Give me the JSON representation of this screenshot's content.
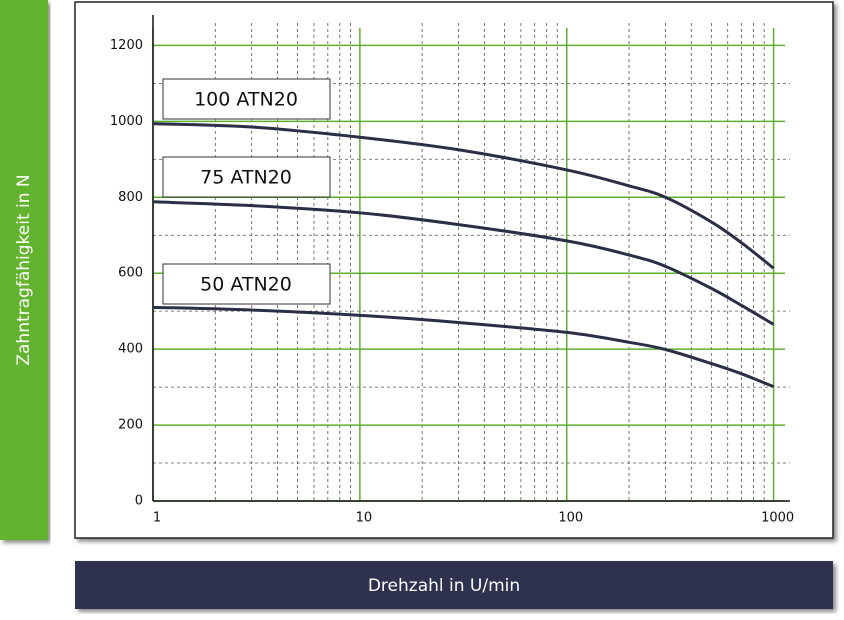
{
  "chart_data": {
    "type": "line",
    "x_label": "Drehzahl in U/min",
    "y_label": "Zahntragfähigkeit in N",
    "x": [
      1,
      3,
      10,
      30,
      100,
      200,
      300,
      500,
      700,
      1000
    ],
    "series": [
      {
        "name": "100 ATN20",
        "color": "#2a2f45",
        "values": [
          994,
          985,
          958,
          925,
          872,
          830,
          800,
          735,
          680,
          613
        ]
      },
      {
        "name": "75 ATN20",
        "color": "#2a2f45",
        "values": [
          788,
          778,
          759,
          728,
          685,
          648,
          618,
          560,
          515,
          465
        ]
      },
      {
        "name": "50 ATN20",
        "color": "#2a2f45",
        "values": [
          510,
          503,
          489,
          470,
          444,
          418,
          399,
          362,
          335,
          301
        ]
      }
    ],
    "x_log": true,
    "xlim": [
      1,
      1200
    ],
    "ylim": [
      0,
      1280
    ],
    "xticks": [
      1,
      10,
      100,
      1000
    ],
    "yticks": [
      0,
      200,
      400,
      600,
      800,
      1000,
      1200
    ],
    "x_minor_ticks": [
      2,
      3,
      4,
      5,
      6,
      7,
      8,
      9,
      20,
      30,
      40,
      50,
      60,
      70,
      80,
      90,
      200,
      300,
      400,
      500,
      600,
      700,
      800,
      900
    ],
    "y_minor_ticks": [
      100,
      300,
      500,
      700,
      900,
      1100
    ],
    "grid": true,
    "grid_color": "#5db02e"
  }
}
